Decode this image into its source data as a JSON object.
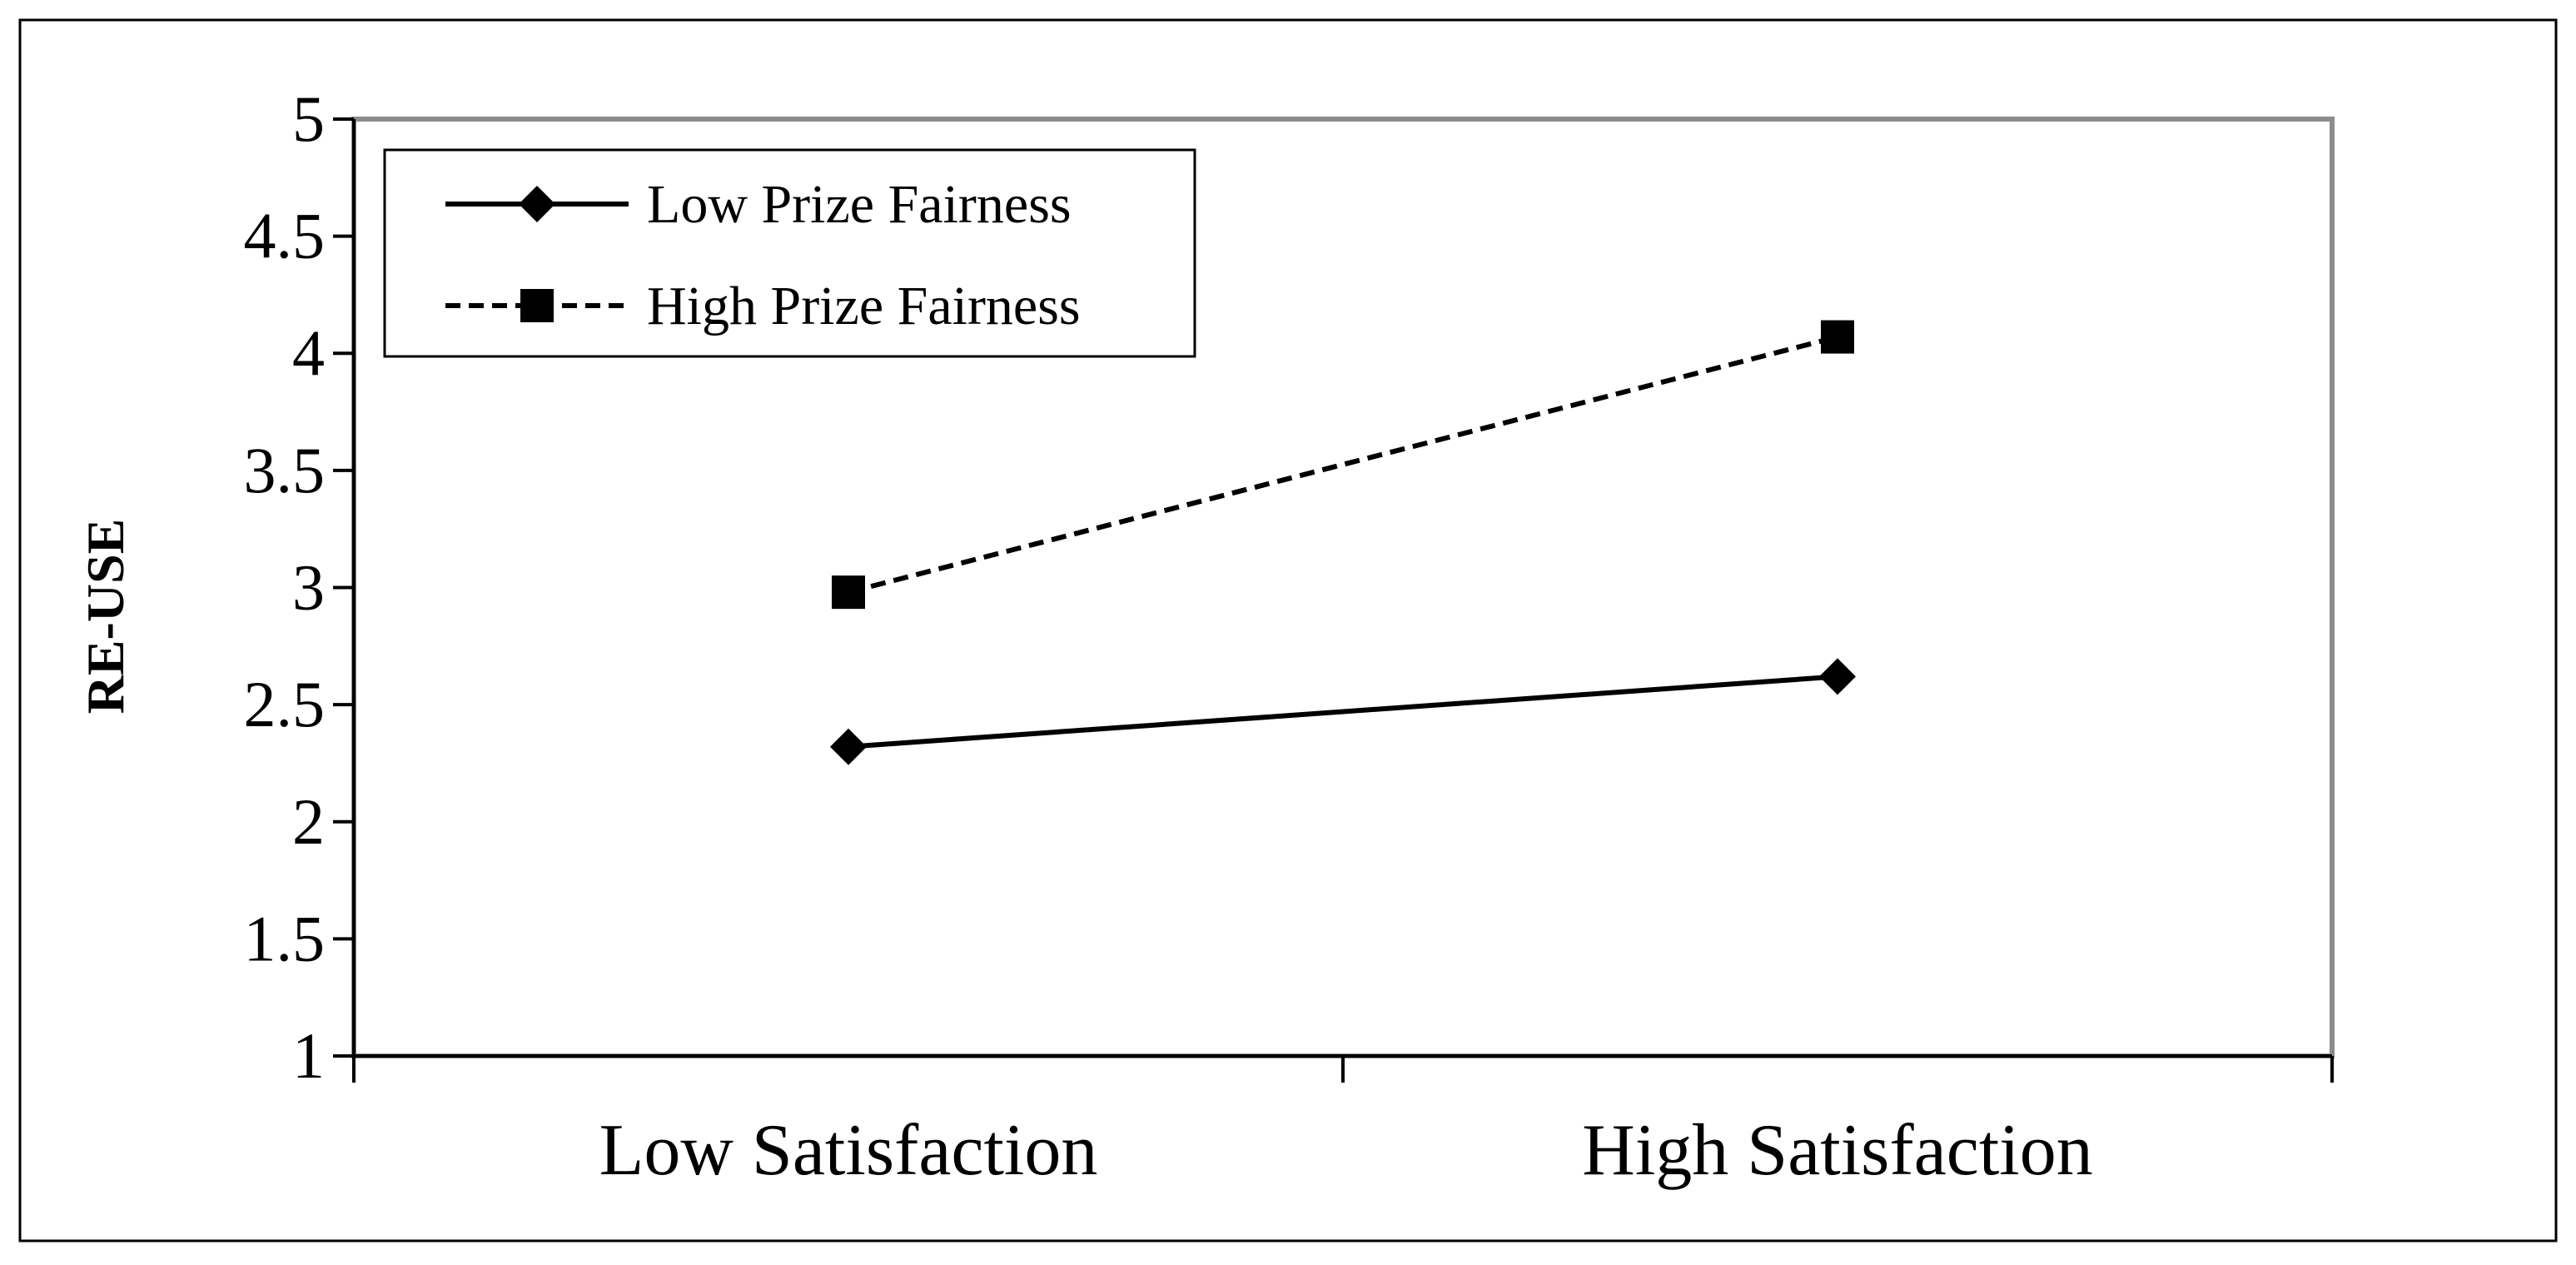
{
  "chart_data": {
    "type": "line",
    "title": "",
    "xlabel": "",
    "ylabel": "RE-USE",
    "categories": [
      "Low Satisfaction",
      "High Satisfaction"
    ],
    "ylim": [
      1,
      5
    ],
    "yticks": [
      "1",
      "1.5",
      "2",
      "2.5",
      "3",
      "3.5",
      "4",
      "4.5",
      "5"
    ],
    "grid": false,
    "legend_position": "top-left",
    "series": [
      {
        "name": "Low Prize Fairness",
        "values": [
          2.32,
          2.62
        ],
        "marker": "diamond",
        "line_style": "solid",
        "color": "#000000"
      },
      {
        "name": "High Prize Fairness",
        "values": [
          2.98,
          4.07
        ],
        "marker": "square",
        "line_style": "dashed",
        "color": "#000000"
      }
    ]
  }
}
